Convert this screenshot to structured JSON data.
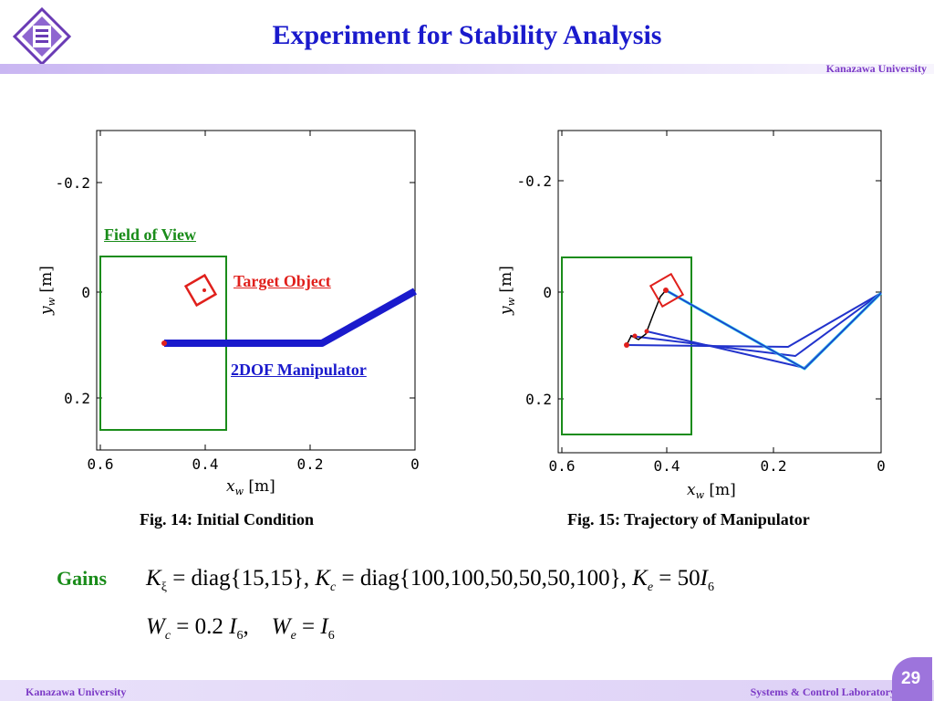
{
  "header": {
    "title": "Experiment for Stability Analysis",
    "university": "Kanazawa University"
  },
  "colors": {
    "title": "#1a1acc",
    "university": "#7b39c6",
    "field_of_view": "#1a8c1a",
    "target": "#e0201c",
    "manipulator": "#1a1acc"
  },
  "figure14": {
    "caption": "Fig. 14: Initial Condition",
    "annotations": {
      "field_of_view": "Field of View",
      "target_object": "Target Object",
      "manipulator": "2DOF Manipulator"
    },
    "x_ticks": [
      "0.6",
      "0.4",
      "0.2",
      "0"
    ],
    "y_ticks": [
      "-0.2",
      "0",
      "0.2"
    ],
    "x_label": "[m]",
    "y_label": "[m]"
  },
  "figure15": {
    "caption": "Fig. 15: Trajectory of Manipulator",
    "x_ticks": [
      "0.6",
      "0.4",
      "0.2",
      "0"
    ],
    "y_ticks": [
      "-0.2",
      "0",
      "0.2"
    ],
    "x_label": "[m]",
    "y_label": "[m]"
  },
  "gains": {
    "label": "Gains",
    "k_xi_value": "= diag{15,15},",
    "k_c_value": "= diag{100,100,50,50,50,100},",
    "k_e_value": "= 50",
    "w_c_value": "= 0.2",
    "w_e_value": "="
  },
  "footer": {
    "university": "Kanazawa University",
    "lab": "Systems & Control Laboratory",
    "page": "29"
  }
}
